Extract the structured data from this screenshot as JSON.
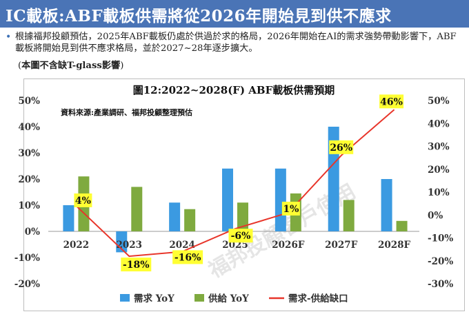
{
  "header": {
    "title": "IC載板:ABF載板供需將從2026年開始見到供不應求"
  },
  "bullet": {
    "text": "根據福邦投顧預估，2025年ABF載板仍處於供過於求的格局，2026年開始在AI的需求強勢帶動影響下，ABF載板將開始見到供不應求格局，並於2027~28年逐步擴大。"
  },
  "note": {
    "open": "(",
    "text": "本圖不含缺T-glass影響",
    "close": ")"
  },
  "watermark": "福邦投顧客戶使用",
  "colors": {
    "demand": "#3b9ae1",
    "supply": "#7faa3f",
    "gap": "#e8352a",
    "label_bg": "#ffff33",
    "header_bg": "#4a74b6"
  },
  "chart_data": {
    "type": "bar",
    "title": "圖12:2022~2028(F) ABF載板供需預期",
    "source": "資料來源:產業調研、福邦投顧整理預估",
    "categories": [
      "2022",
      "2023",
      "2024",
      "2025",
      "2026F",
      "2027F",
      "2028F"
    ],
    "series": [
      {
        "name": "需求 YoY",
        "type": "bar",
        "axis": "left",
        "values": [
          10,
          -8,
          11,
          24,
          24,
          40,
          20
        ]
      },
      {
        "name": "供給 YoY",
        "type": "bar",
        "axis": "left",
        "values": [
          21,
          17,
          8.5,
          11,
          14.5,
          12,
          4
        ]
      },
      {
        "name": "需求-供給缺口",
        "type": "line",
        "axis": "right",
        "values": [
          4,
          -18,
          -16,
          -6,
          1,
          26,
          46
        ],
        "labels": [
          "4%",
          "-18%",
          "-16%",
          "-6%",
          "1%",
          "26%",
          "46%"
        ]
      }
    ],
    "left_axis": {
      "ylim": [
        -20,
        50
      ],
      "ticks": [
        "50%",
        "40%",
        "30%",
        "20%",
        "10%",
        "0%",
        "-10%",
        "-20%"
      ]
    },
    "right_axis": {
      "ylim": [
        -30,
        50
      ],
      "ticks": [
        "50%",
        "40%",
        "30%",
        "20%",
        "10%",
        "0%",
        "-10%",
        "-20%",
        "-30%"
      ]
    },
    "legend_position": "bottom",
    "grid": false
  }
}
